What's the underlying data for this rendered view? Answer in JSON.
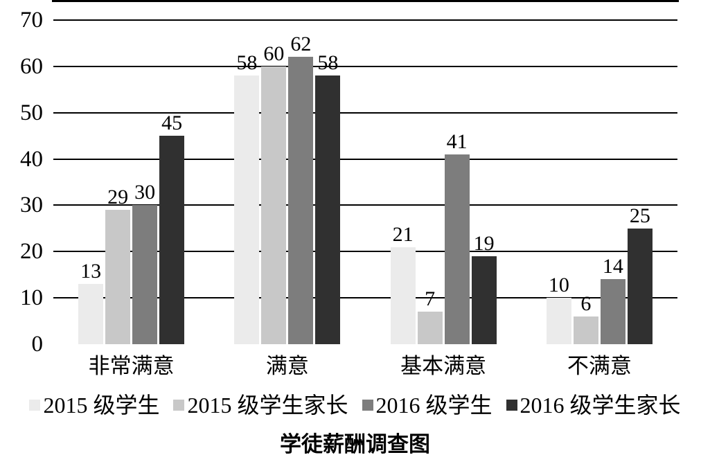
{
  "chart_data": {
    "type": "bar",
    "title": "学徒薪酬调查图",
    "categories": [
      "非常满意",
      "满意",
      "基本满意",
      "不满意"
    ],
    "series": [
      {
        "name": "2015 级学生",
        "color": "#ebebeb",
        "values": [
          13,
          58,
          21,
          10
        ]
      },
      {
        "name": "2015 级学生家长",
        "color": "#c8c8c8",
        "values": [
          29,
          60,
          7,
          6
        ]
      },
      {
        "name": "2016 级学生",
        "color": "#7d7d7d",
        "values": [
          30,
          62,
          41,
          14
        ]
      },
      {
        "name": "2016 级学生家长",
        "color": "#303030",
        "values": [
          45,
          58,
          19,
          25
        ]
      }
    ],
    "ylim": [
      0,
      70
    ],
    "yticks": [
      0,
      10,
      20,
      30,
      40,
      50,
      60,
      70
    ],
    "grid": true,
    "legend_position": "bottom",
    "gridline_color": "#000000",
    "axis_color": "#000000",
    "value_label_color": "#000000",
    "background_color": "#ffffff"
  }
}
